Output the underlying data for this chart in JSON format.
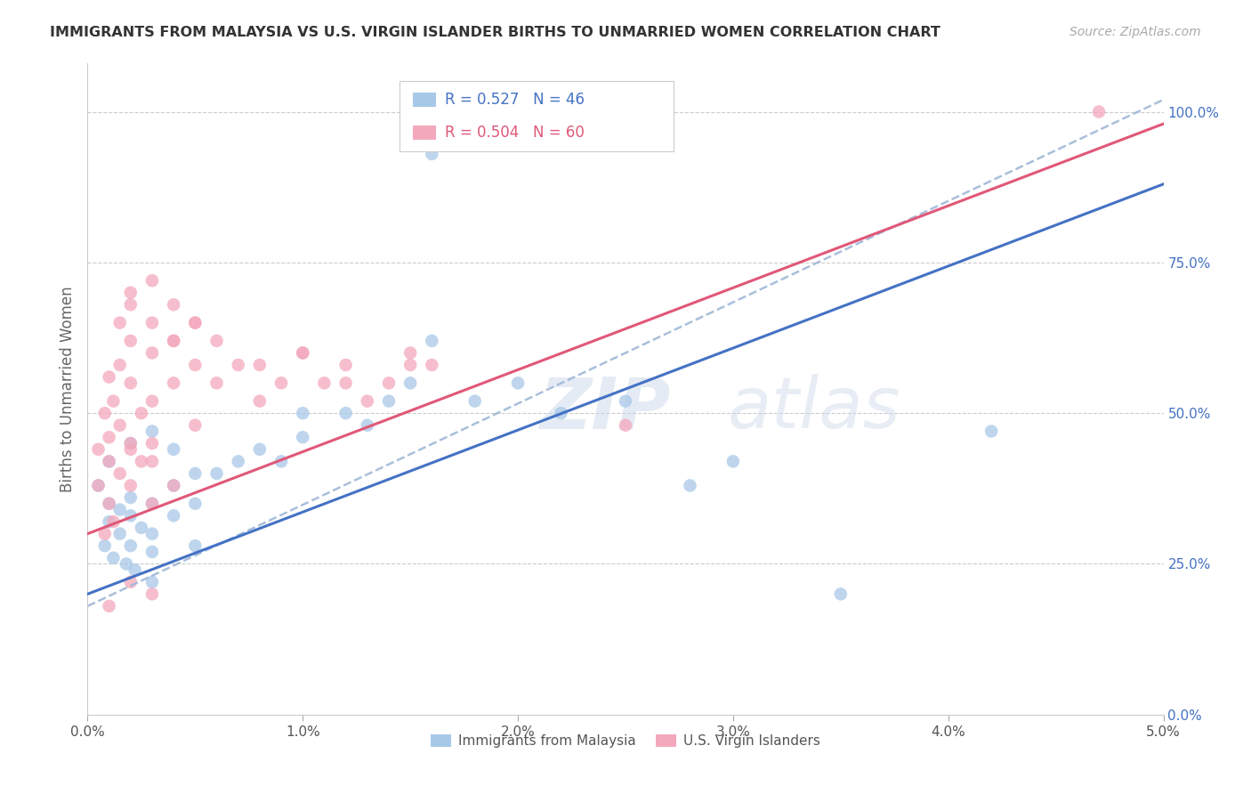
{
  "title": "IMMIGRANTS FROM MALAYSIA VS U.S. VIRGIN ISLANDER BIRTHS TO UNMARRIED WOMEN CORRELATION CHART",
  "source": "Source: ZipAtlas.com",
  "ylabel": "Births to Unmarried Women",
  "x_ticks": [
    0.0,
    0.01,
    0.02,
    0.03,
    0.04,
    0.05
  ],
  "x_tick_labels": [
    "0.0%",
    "1.0%",
    "2.0%",
    "3.0%",
    "4.0%",
    "5.0%"
  ],
  "y_ticks_right": [
    0.0,
    0.25,
    0.5,
    0.75,
    1.0
  ],
  "y_tick_labels_right": [
    "0.0%",
    "25.0%",
    "50.0%",
    "75.0%",
    "100.0%"
  ],
  "xlim": [
    0.0,
    0.05
  ],
  "ylim": [
    0.0,
    1.08
  ],
  "blue_R": 0.527,
  "blue_N": 46,
  "pink_R": 0.504,
  "pink_N": 60,
  "blue_color": "#a8c8e8",
  "pink_color": "#f4a8bc",
  "trend_blue": "#4472c4",
  "trend_pink": "#e05878",
  "trend_dashed_color": "#a0b8d8",
  "legend_label_blue": "Immigrants from Malaysia",
  "legend_label_pink": "U.S. Virgin Islanders",
  "watermark": "ZIPatlas",
  "blue_line_x": [
    0.0,
    0.05
  ],
  "blue_line_y": [
    0.2,
    0.88
  ],
  "pink_line_x": [
    0.0,
    0.05
  ],
  "pink_line_y": [
    0.3,
    0.98
  ],
  "dashed_line_x": [
    0.0,
    0.05
  ],
  "dashed_line_y": [
    0.18,
    1.02
  ],
  "blue_scatter_x": [
    0.0005,
    0.001,
    0.001,
    0.0015,
    0.0015,
    0.002,
    0.002,
    0.002,
    0.0025,
    0.003,
    0.003,
    0.003,
    0.004,
    0.004,
    0.005,
    0.005,
    0.006,
    0.007,
    0.008,
    0.009,
    0.01,
    0.01,
    0.012,
    0.013,
    0.014,
    0.015,
    0.016,
    0.018,
    0.02,
    0.022,
    0.025,
    0.028,
    0.001,
    0.002,
    0.003,
    0.004,
    0.005,
    0.0008,
    0.0012,
    0.0018,
    0.0022,
    0.003,
    0.016,
    0.03,
    0.035,
    0.042
  ],
  "blue_scatter_y": [
    0.38,
    0.35,
    0.32,
    0.34,
    0.3,
    0.36,
    0.33,
    0.28,
    0.31,
    0.35,
    0.3,
    0.27,
    0.38,
    0.33,
    0.35,
    0.28,
    0.4,
    0.42,
    0.44,
    0.42,
    0.5,
    0.46,
    0.5,
    0.48,
    0.52,
    0.55,
    0.62,
    0.52,
    0.55,
    0.5,
    0.52,
    0.38,
    0.42,
    0.45,
    0.47,
    0.44,
    0.4,
    0.28,
    0.26,
    0.25,
    0.24,
    0.22,
    0.93,
    0.42,
    0.2,
    0.47
  ],
  "pink_scatter_x": [
    0.0005,
    0.0008,
    0.001,
    0.001,
    0.0012,
    0.0015,
    0.0015,
    0.002,
    0.002,
    0.002,
    0.0025,
    0.003,
    0.003,
    0.003,
    0.004,
    0.004,
    0.005,
    0.005,
    0.006,
    0.007,
    0.008,
    0.009,
    0.01,
    0.011,
    0.012,
    0.013,
    0.014,
    0.015,
    0.016,
    0.0005,
    0.001,
    0.0015,
    0.002,
    0.0025,
    0.003,
    0.0008,
    0.001,
    0.0012,
    0.002,
    0.003,
    0.004,
    0.0015,
    0.002,
    0.003,
    0.004,
    0.005,
    0.002,
    0.003,
    0.004,
    0.005,
    0.006,
    0.008,
    0.01,
    0.012,
    0.015,
    0.002,
    0.001,
    0.003,
    0.047,
    0.025
  ],
  "pink_scatter_y": [
    0.44,
    0.5,
    0.56,
    0.46,
    0.52,
    0.58,
    0.48,
    0.62,
    0.55,
    0.45,
    0.5,
    0.6,
    0.52,
    0.42,
    0.62,
    0.55,
    0.58,
    0.48,
    0.55,
    0.58,
    0.52,
    0.55,
    0.6,
    0.55,
    0.58,
    0.52,
    0.55,
    0.6,
    0.58,
    0.38,
    0.42,
    0.4,
    0.44,
    0.42,
    0.45,
    0.3,
    0.35,
    0.32,
    0.38,
    0.35,
    0.38,
    0.65,
    0.68,
    0.65,
    0.62,
    0.65,
    0.7,
    0.72,
    0.68,
    0.65,
    0.62,
    0.58,
    0.6,
    0.55,
    0.58,
    0.22,
    0.18,
    0.2,
    1.0,
    0.48
  ]
}
